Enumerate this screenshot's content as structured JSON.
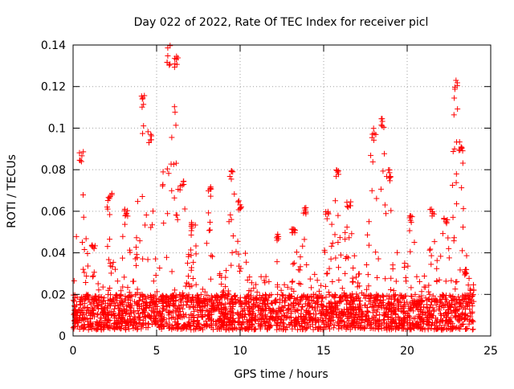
{
  "chart_data": {
    "type": "scatter",
    "title": "Day 022 of 2022, Rate Of TEC Index for receiver picl",
    "xlabel": "GPS time / hours",
    "ylabel": "ROTI / TECUs",
    "xlim": [
      0,
      25
    ],
    "ylim": [
      0,
      0.14
    ],
    "xticks": [
      "0",
      "5",
      "10",
      "15",
      "20",
      "25"
    ],
    "yticks": [
      "0",
      "0.02",
      "0.04",
      "0.06",
      "0.08",
      "0.1",
      "0.12",
      "0.14"
    ],
    "grid": true,
    "marker": "+",
    "series": [
      {
        "color": "#ff0000",
        "x_range": [
          0,
          24
        ],
        "baseline_band": [
          0.003,
          0.02
        ],
        "peaks": [
          [
            0.5,
            0.09
          ],
          [
            1.2,
            0.045
          ],
          [
            2.2,
            0.07
          ],
          [
            3.2,
            0.062
          ],
          [
            4.2,
            0.116
          ],
          [
            4.6,
            0.1
          ],
          [
            5.7,
            0.14
          ],
          [
            6.2,
            0.138
          ],
          [
            6.5,
            0.075
          ],
          [
            7.2,
            0.055
          ],
          [
            8.2,
            0.072
          ],
          [
            9.5,
            0.08
          ],
          [
            10.0,
            0.065
          ],
          [
            12.3,
            0.049
          ],
          [
            13.2,
            0.052
          ],
          [
            13.9,
            0.062
          ],
          [
            15.2,
            0.06
          ],
          [
            15.8,
            0.082
          ],
          [
            16.5,
            0.065
          ],
          [
            18.0,
            0.1
          ],
          [
            18.5,
            0.105
          ],
          [
            19.0,
            0.08
          ],
          [
            20.2,
            0.058
          ],
          [
            21.5,
            0.062
          ],
          [
            22.3,
            0.058
          ],
          [
            22.9,
            0.123
          ],
          [
            23.2,
            0.095
          ],
          [
            23.5,
            0.032
          ]
        ]
      }
    ]
  }
}
